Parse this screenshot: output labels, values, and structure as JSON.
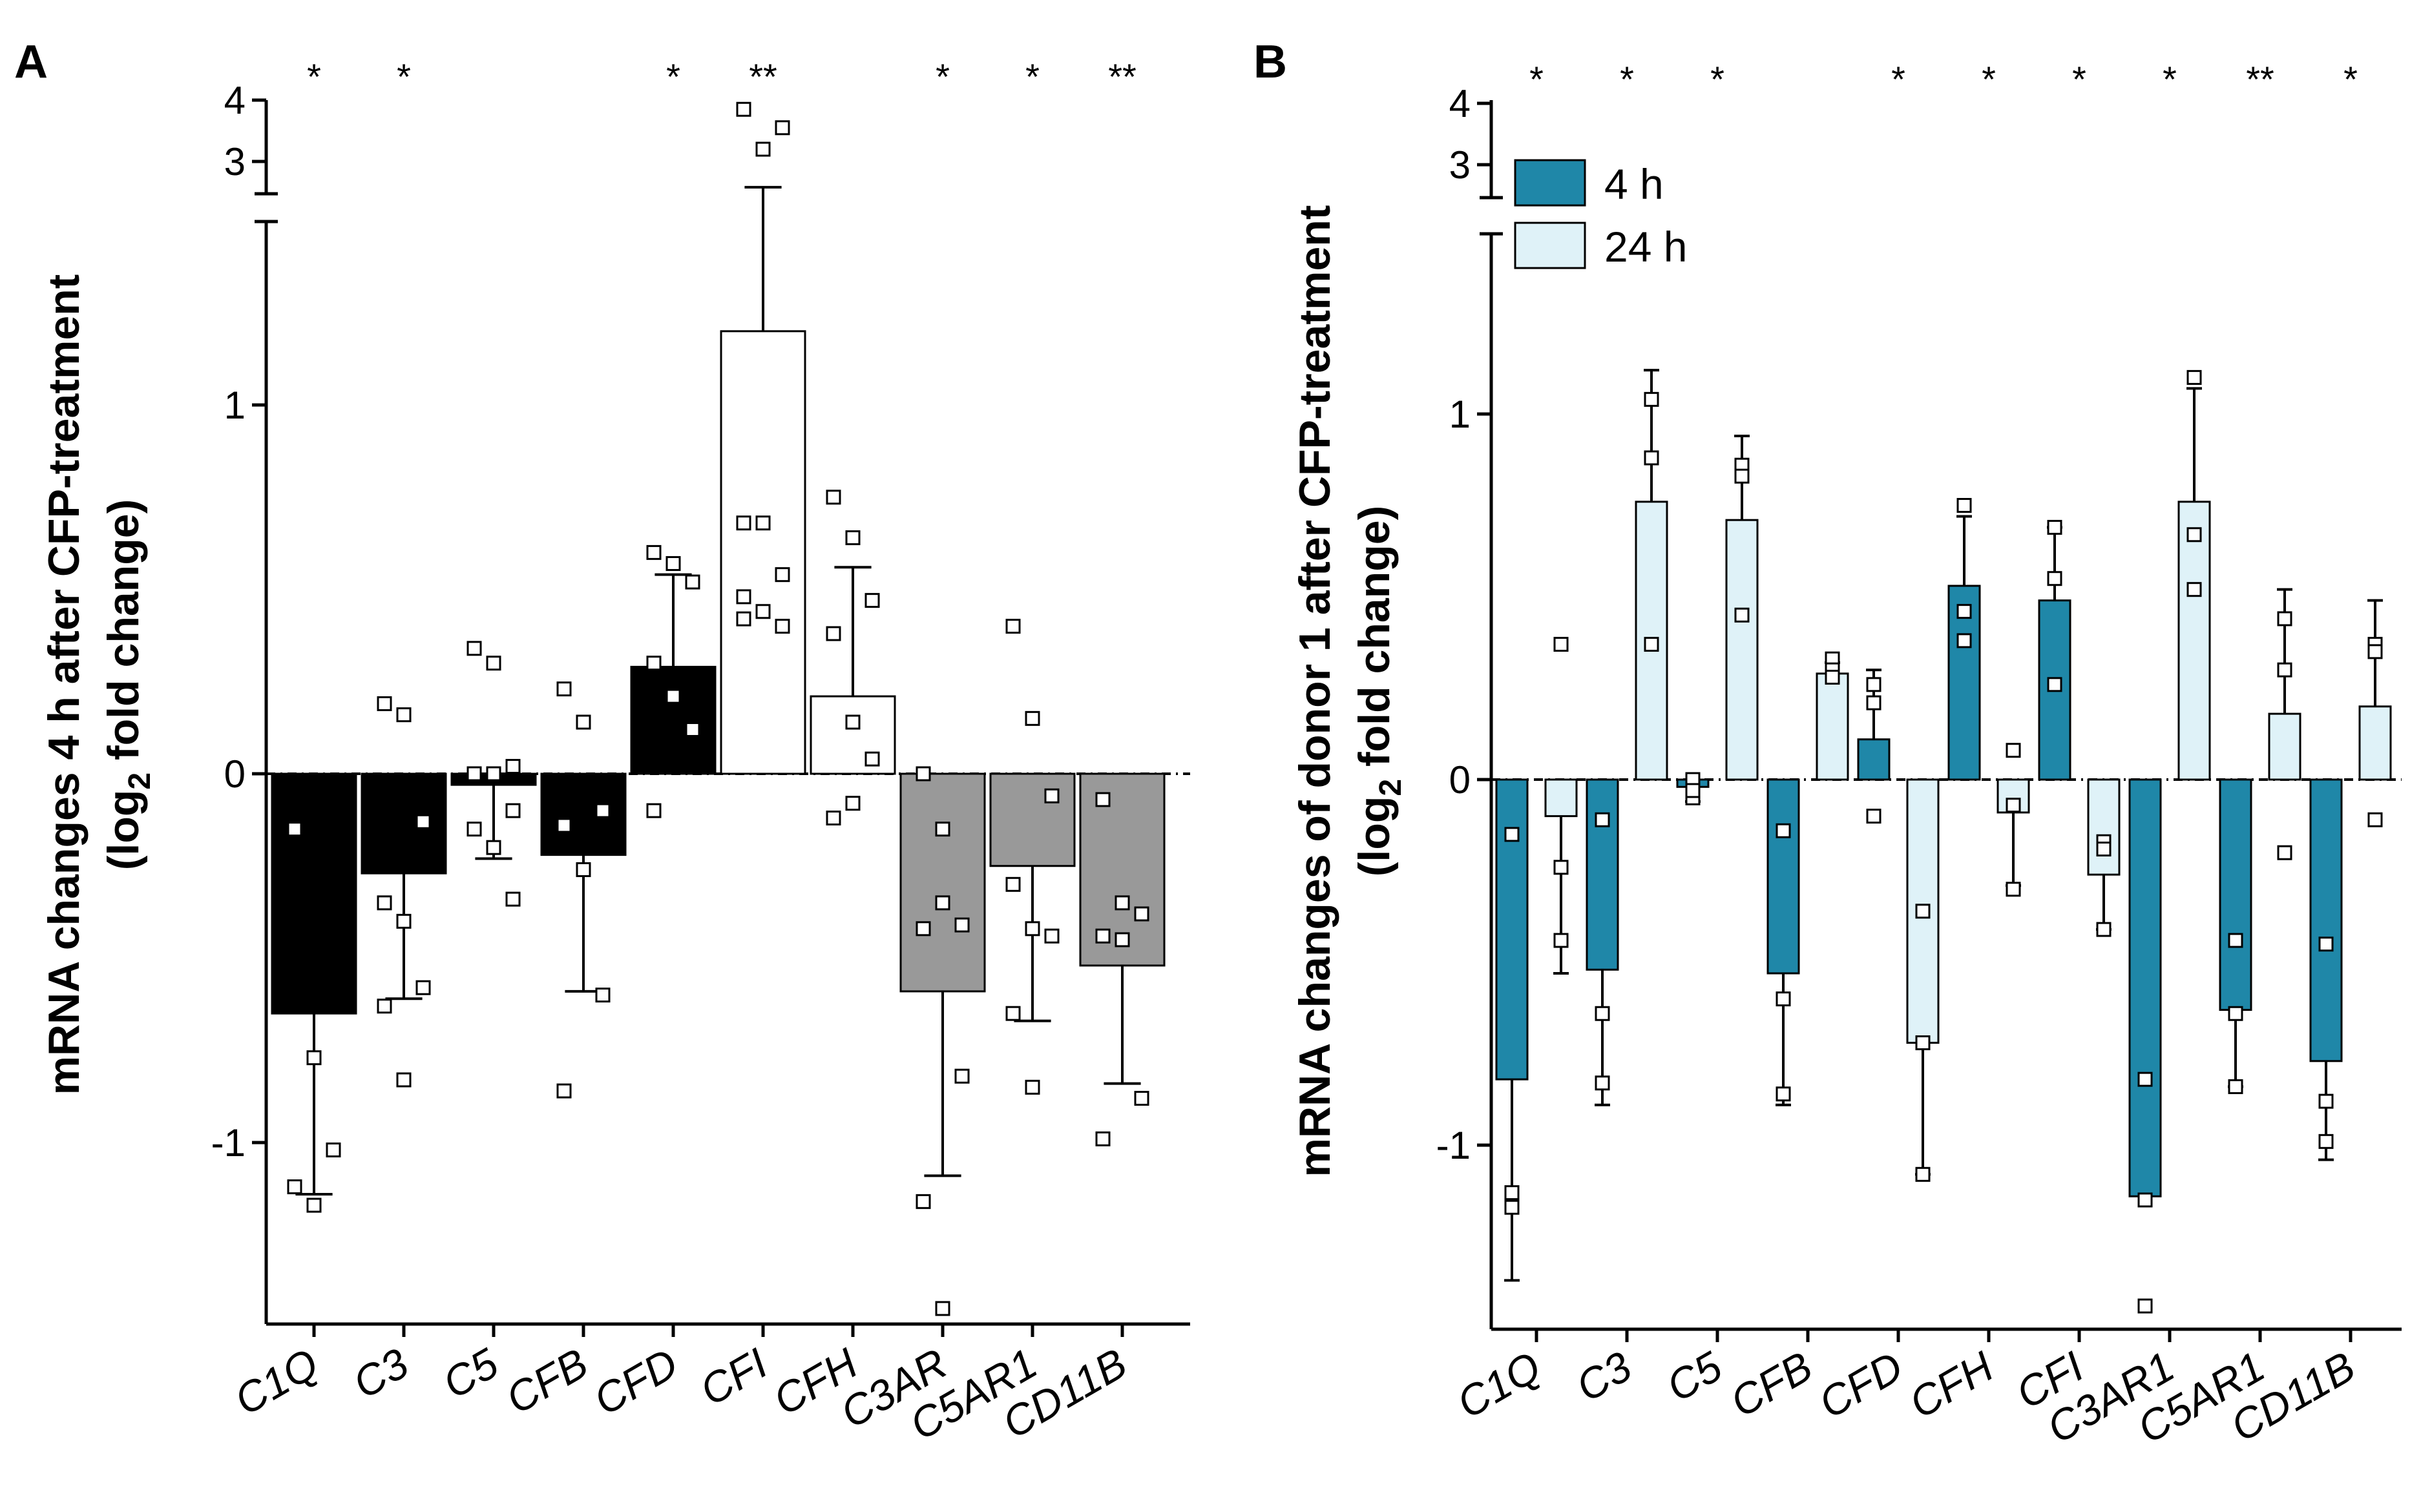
{
  "chart_data": [
    {
      "type": "bar",
      "panel": "A",
      "ylabel_line1": "mRNA changes 4 h after CFP-treatment",
      "ylabel_line2_pre": "(log",
      "ylabel_line2_sub": "2",
      "ylabel_line2_post": " fold change)",
      "y_ticks": [
        "-1",
        "0",
        "1"
      ],
      "y_break_ticks": [
        "3",
        "4"
      ],
      "ylim": [
        -1.5,
        1.5
      ],
      "categories": [
        "C1Q",
        "C3",
        "C5",
        "CFB",
        "CFD",
        "CFI",
        "CFH",
        "C3AR",
        "C5AR1",
        "CD11B"
      ],
      "significance": [
        "*",
        "*",
        "",
        "",
        "*",
        "**",
        "",
        "*",
        "*",
        "**"
      ],
      "series": [
        {
          "name": "4 h",
          "values": [
            -0.65,
            -0.27,
            -0.03,
            -0.22,
            0.29,
            1.2,
            0.21,
            -0.59,
            -0.25,
            -0.52
          ],
          "error": [
            0.49,
            0.34,
            0.2,
            0.37,
            0.25,
            1.38,
            0.35,
            0.5,
            0.42,
            0.32
          ],
          "bar_colors": [
            "#000000",
            "#000000",
            "#000000",
            "#000000",
            "#000000",
            "#ffffff",
            "#ffffff",
            "#999999",
            "#999999",
            "#999999"
          ],
          "points": [
            [
              -0.15,
              -0.77,
              -1.02,
              -1.12,
              -1.17
            ],
            [
              0.19,
              0.16,
              -0.13,
              -0.35,
              -0.4,
              -0.58,
              -0.63,
              -0.83
            ],
            [
              0.34,
              0.3,
              0.02,
              0.0,
              0.0,
              -0.1,
              -0.15,
              -0.2,
              -0.34
            ],
            [
              0.23,
              0.14,
              -0.1,
              -0.14,
              -0.26,
              -0.6,
              -0.86
            ],
            [
              0.6,
              0.57,
              0.52,
              0.3,
              0.21,
              0.12,
              -0.1
            ],
            [
              0.68,
              0.68,
              0.54,
              0.48,
              0.44,
              0.4,
              0.42,
              3.2,
              3.55,
              3.85
            ],
            [
              0.75,
              0.64,
              0.47,
              0.38,
              0.14,
              0.04,
              -0.12,
              -0.08
            ],
            [
              0.0,
              -0.15,
              -0.41,
              -0.42,
              -0.35,
              -0.82,
              -1.16,
              -1.45
            ],
            [
              0.4,
              0.15,
              -0.06,
              -0.3,
              -0.42,
              -0.44,
              -0.65,
              -0.85
            ],
            [
              -0.07,
              -0.35,
              -0.38,
              -0.44,
              -0.45,
              -0.88,
              -0.99
            ]
          ]
        }
      ]
    },
    {
      "type": "bar",
      "panel": "B",
      "ylabel_line1": "mRNA changes of donor 1 after CFP-treatment",
      "ylabel_line2_pre": "(log",
      "ylabel_line2_sub": "2",
      "ylabel_line2_post": " fold change)",
      "y_ticks": [
        "-1",
        "0",
        "1"
      ],
      "y_break_ticks": [
        "3",
        "4"
      ],
      "ylim": [
        -1.5,
        1.5
      ],
      "categories": [
        "C1Q",
        "C3",
        "C5",
        "CFB",
        "CFD",
        "CFH",
        "CFI",
        "C3AR1",
        "C5AR1",
        "CD11B"
      ],
      "significance": [
        "*",
        "*",
        "*",
        "",
        "*",
        "*",
        "*",
        "*",
        "**",
        "*"
      ],
      "legend": [
        "4 h",
        "24 h"
      ],
      "series": [
        {
          "name": "4 h",
          "color": "#1f87a8",
          "values": [
            -0.82,
            -0.52,
            -0.02,
            -0.53,
            0.11,
            0.53,
            0.49,
            -1.14,
            -0.63,
            -0.77
          ],
          "error": [
            0.55,
            0.37,
            0.04,
            0.36,
            0.19,
            0.19,
            0.2,
            0.0,
            0.21,
            0.27
          ],
          "points": [
            [
              -0.15,
              -1.13,
              -1.17
            ],
            [
              -0.11,
              -0.64,
              -0.83
            ],
            [
              0.0,
              -0.05,
              -0.03
            ],
            [
              -0.14,
              -0.6,
              -0.86
            ],
            [
              0.26,
              0.21,
              -0.1
            ],
            [
              0.75,
              0.46,
              0.38
            ],
            [
              0.69,
              0.55,
              0.26
            ],
            [
              -0.82,
              -1.15,
              -1.44
            ],
            [
              -0.44,
              -0.64,
              -0.84
            ],
            [
              -0.45,
              -0.88,
              -0.99
            ]
          ]
        },
        {
          "name": "24 h",
          "color": "#dff2f8",
          "values": [
            -0.1,
            0.76,
            0.71,
            0.29,
            -0.72,
            -0.09,
            -0.26,
            0.76,
            0.18,
            0.2
          ],
          "error": [
            0.43,
            0.36,
            0.23,
            0.03,
            0.36,
            0.2,
            0.15,
            0.31,
            0.34,
            0.29
          ],
          "points": [
            [
              0.37,
              -0.24,
              -0.44
            ],
            [
              1.04,
              0.88,
              0.37
            ],
            [
              0.86,
              0.83,
              0.45
            ],
            [
              0.33,
              0.3,
              0.28
            ],
            [
              -0.36,
              -0.72,
              -1.08
            ],
            [
              0.08,
              -0.07,
              -0.3
            ],
            [
              -0.17,
              -0.19,
              -0.41
            ],
            [
              1.1,
              0.67,
              0.52
            ],
            [
              0.44,
              0.3,
              -0.2
            ],
            [
              0.37,
              0.35,
              -0.11
            ]
          ]
        }
      ]
    }
  ]
}
